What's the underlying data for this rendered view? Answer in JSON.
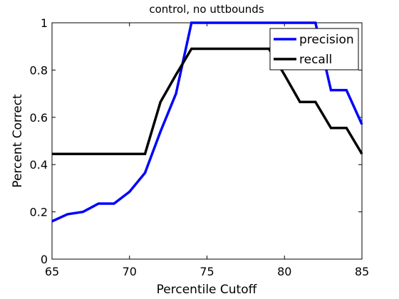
{
  "chart_data": {
    "type": "line",
    "title": "control, no uttbounds",
    "xlabel": "Percentile Cutoff",
    "ylabel": "Percent Correct",
    "xlim": [
      65,
      85
    ],
    "ylim": [
      0,
      1
    ],
    "xticks": [
      65,
      70,
      75,
      80,
      85
    ],
    "yticks": [
      0,
      0.2,
      0.4,
      0.6,
      0.8,
      1
    ],
    "xtick_labels": [
      "65",
      "70",
      "75",
      "80",
      "85"
    ],
    "ytick_labels": [
      "0",
      "0.2",
      "0.4",
      "0.6",
      "0.8",
      "1"
    ],
    "grid": false,
    "legend_position": "top-right",
    "series": [
      {
        "name": "precision",
        "color": "#0000ff",
        "points": [
          [
            65,
            0.16
          ],
          [
            66,
            0.19
          ],
          [
            67,
            0.2
          ],
          [
            68,
            0.235
          ],
          [
            69,
            0.235
          ],
          [
            70,
            0.285
          ],
          [
            71,
            0.365
          ],
          [
            72,
            0.54
          ],
          [
            73,
            0.7
          ],
          [
            74,
            1.0
          ],
          [
            75,
            1.0
          ],
          [
            76,
            1.0
          ],
          [
            77,
            1.0
          ],
          [
            78,
            1.0
          ],
          [
            79,
            1.0
          ],
          [
            80,
            1.0
          ],
          [
            81,
            1.0
          ],
          [
            82,
            1.0
          ],
          [
            83,
            0.715
          ],
          [
            84,
            0.715
          ],
          [
            85,
            0.57
          ]
        ]
      },
      {
        "name": "recall",
        "color": "#000000",
        "points": [
          [
            65,
            0.445
          ],
          [
            66,
            0.445
          ],
          [
            67,
            0.445
          ],
          [
            68,
            0.445
          ],
          [
            69,
            0.445
          ],
          [
            70,
            0.445
          ],
          [
            71,
            0.445
          ],
          [
            72,
            0.665
          ],
          [
            73,
            0.78
          ],
          [
            74,
            0.89
          ],
          [
            75,
            0.89
          ],
          [
            76,
            0.89
          ],
          [
            77,
            0.89
          ],
          [
            78,
            0.89
          ],
          [
            79,
            0.89
          ],
          [
            80,
            0.78
          ],
          [
            81,
            0.665
          ],
          [
            82,
            0.665
          ],
          [
            83,
            0.555
          ],
          [
            84,
            0.555
          ],
          [
            85,
            0.445
          ]
        ]
      }
    ]
  }
}
